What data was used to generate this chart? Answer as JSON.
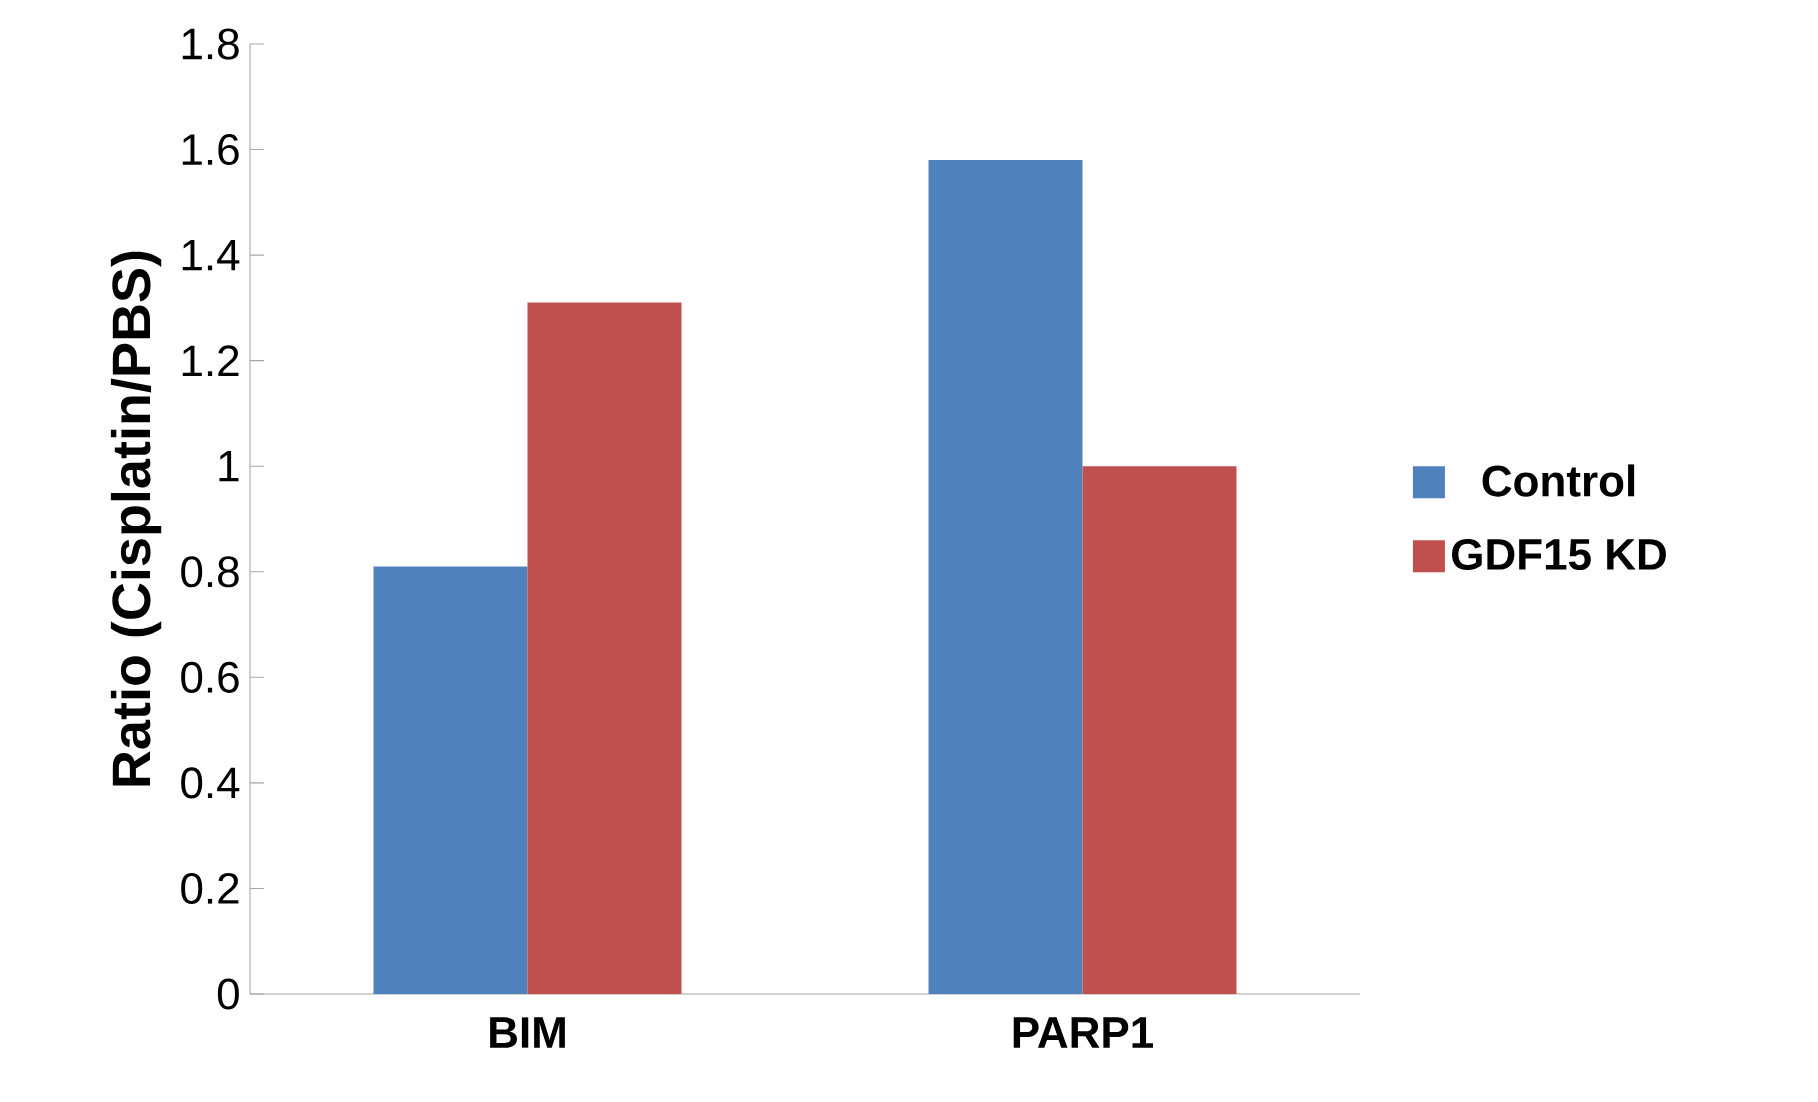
{
  "chart_data": {
    "type": "bar",
    "ylabel": "Ratio (Cisplatin/PBS)",
    "categories": [
      "BIM",
      "PARP1"
    ],
    "series": [
      {
        "name": "Control",
        "color": "#4f81bd",
        "values": [
          0.81,
          1.58
        ]
      },
      {
        "name": "GDF15 KD",
        "color": "#c0504d",
        "values": [
          1.31,
          1.0
        ]
      }
    ],
    "ylim": [
      0,
      1.8
    ],
    "yticks": [
      0,
      0.2,
      0.4,
      0.6,
      0.8,
      1,
      1.2,
      1.4,
      1.6,
      1.8
    ],
    "grid": false,
    "legend": "right"
  }
}
